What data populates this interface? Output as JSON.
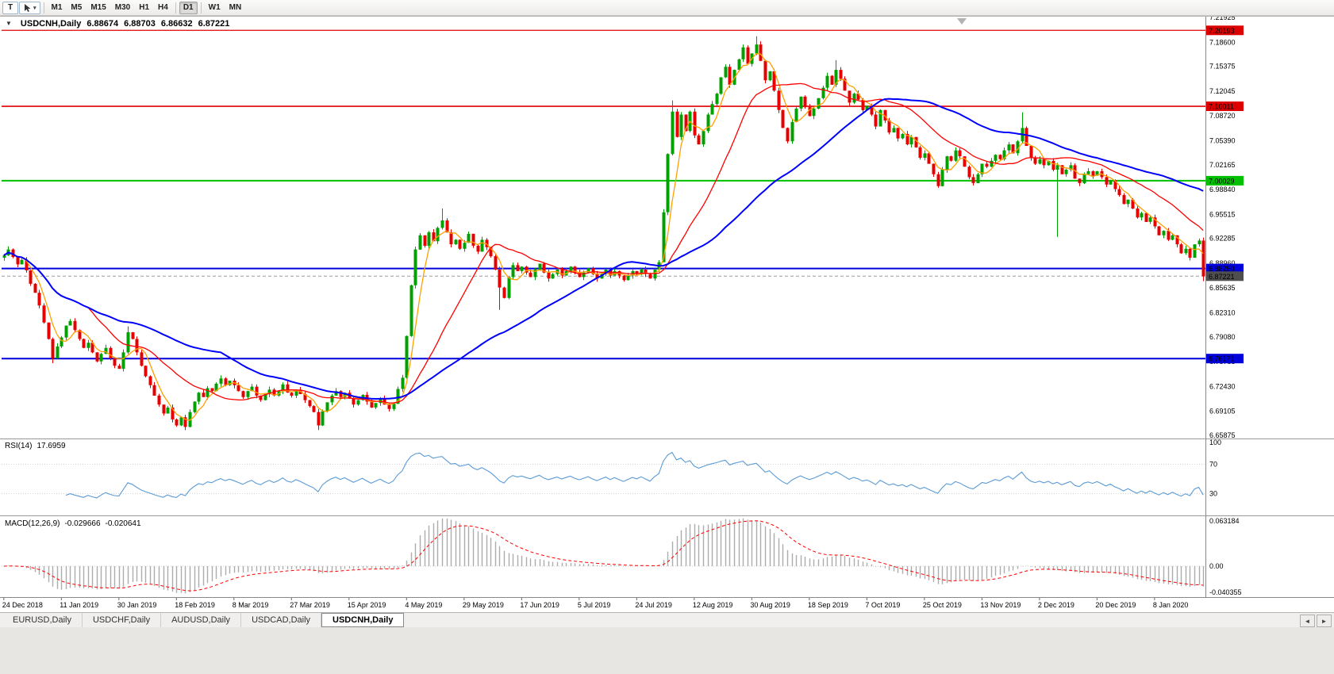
{
  "toolbar": {
    "tool_button": "T",
    "cursor_dropdown_caret": "▾",
    "timeframes": [
      "M1",
      "M5",
      "M15",
      "M30",
      "H1",
      "H4",
      "D1",
      "W1",
      "MN"
    ],
    "active_timeframe": "D1"
  },
  "chart": {
    "title_marker": "▼",
    "symbol_period": "USDCNH,Daily",
    "ohlc": {
      "open": "6.88674",
      "high": "6.88703",
      "low": "6.86632",
      "close": "6.87221"
    }
  },
  "rsi_panel": {
    "label": "RSI(14)",
    "value": "17.6959",
    "levels": [
      "100",
      "70",
      "30"
    ]
  },
  "macd_panel": {
    "label": "MACD(12,26,9)",
    "main_value": "-0.029666",
    "signal_value": "-0.020641",
    "scale": [
      "0.063184",
      "0.00",
      "-0.040355"
    ]
  },
  "price_axis": {
    "ticks": [
      "7.21925",
      "7.18600",
      "7.15375",
      "7.12045",
      "7.08720",
      "7.05390",
      "7.02165",
      "6.98840",
      "6.95515",
      "6.92285",
      "6.88960",
      "6.85635",
      "6.82310",
      "6.79080",
      "6.75755",
      "6.72430",
      "6.69105",
      "6.65875"
    ]
  },
  "hlines": [
    {
      "label": "7.20193",
      "price": 7.20193,
      "color": "#dd0000",
      "width": 1.2
    },
    {
      "label": "7.10011",
      "price": 7.10011,
      "color": "#dd0000",
      "width": 1.6
    },
    {
      "label": "7.00029",
      "price": 7.00029,
      "color": "#00c000",
      "width": 2
    },
    {
      "label": "6.88250",
      "price": 6.8825,
      "color": "#0000dd",
      "width": 2
    },
    {
      "label": "6.76171",
      "price": 6.76171,
      "color": "#0000dd",
      "width": 2
    }
  ],
  "current_price": {
    "label": "6.87221",
    "price": 6.87221,
    "box_color": "#4f4f4f"
  },
  "date_axis": {
    "label_step": 13,
    "labels": [
      "24 Dec 2018",
      "11 Jan 2019",
      "30 Jan 2019",
      "18 Feb 2019",
      "8 Mar 2019",
      "27 Mar 2019",
      "15 Apr 2019",
      "4 May 2019",
      "29 May 2019",
      "17 Jun 2019",
      "5 Jul 2019",
      "24 Jul 2019",
      "12 Aug 2019",
      "30 Aug 2019",
      "18 Sep 2019",
      "7 Oct 2019",
      "25 Oct 2019",
      "13 Nov 2019",
      "2 Dec 2019",
      "20 Dec 2019",
      "8 Jan 2020"
    ]
  },
  "tabs": {
    "items": [
      {
        "label": "EURUSD,Daily",
        "active": false
      },
      {
        "label": "USDCHF,Daily",
        "active": false
      },
      {
        "label": "AUDUSD,Daily",
        "active": false
      },
      {
        "label": "USDCAD,Daily",
        "active": false
      },
      {
        "label": "USDCNH,Daily",
        "active": true
      }
    ],
    "scroll_left": "◄",
    "scroll_right": "►"
  },
  "colors": {
    "bull": "#00A000",
    "bear": "#E80000"
  },
  "chart_data": {
    "type": "candlestick+indicators",
    "symbol": "USDCNH",
    "timeframe": "Daily",
    "price_range": {
      "top": 7.21925,
      "bottom": 6.65875
    },
    "first_open": 6.897,
    "closes": [
      6.9,
      6.908,
      6.898,
      6.888,
      6.894,
      6.88,
      6.862,
      6.85,
      6.833,
      6.81,
      6.788,
      6.762,
      6.778,
      6.79,
      6.806,
      6.812,
      6.8,
      6.788,
      6.776,
      6.783,
      6.77,
      6.758,
      6.768,
      6.776,
      6.762,
      6.752,
      6.748,
      6.77,
      6.797,
      6.788,
      6.77,
      6.752,
      6.738,
      6.726,
      6.712,
      6.7,
      6.688,
      6.696,
      6.68,
      6.672,
      6.683,
      6.67,
      6.69,
      6.704,
      6.716,
      6.71,
      6.722,
      6.718,
      6.728,
      6.735,
      6.726,
      6.732,
      6.726,
      6.718,
      6.71,
      6.718,
      6.724,
      6.712,
      6.706,
      6.714,
      6.72,
      6.712,
      6.718,
      6.727,
      6.716,
      6.712,
      6.72,
      6.714,
      6.706,
      6.698,
      6.69,
      6.672,
      6.691,
      6.703,
      6.712,
      6.718,
      6.71,
      6.716,
      6.708,
      6.7,
      6.706,
      6.713,
      6.704,
      6.696,
      6.702,
      6.708,
      6.7,
      6.694,
      6.701,
      6.721,
      6.736,
      6.792,
      6.86,
      6.908,
      6.927,
      6.913,
      6.931,
      6.919,
      6.937,
      6.947,
      6.931,
      6.915,
      6.921,
      6.909,
      6.917,
      6.929,
      6.913,
      6.905,
      6.921,
      6.911,
      6.899,
      6.881,
      6.857,
      6.843,
      6.871,
      6.887,
      6.879,
      6.885,
      6.877,
      6.871,
      6.881,
      6.889,
      6.877,
      6.869,
      6.875,
      6.881,
      6.873,
      6.879,
      6.885,
      6.877,
      6.871,
      6.877,
      6.883,
      6.875,
      6.869,
      6.875,
      6.881,
      6.873,
      6.879,
      6.873,
      6.867,
      6.873,
      6.879,
      6.875,
      6.881,
      6.875,
      6.869,
      6.881,
      6.891,
      6.958,
      7.036,
      7.093,
      7.059,
      7.089,
      7.067,
      7.093,
      7.061,
      7.049,
      7.067,
      7.089,
      7.103,
      7.117,
      7.139,
      7.153,
      7.129,
      7.149,
      7.163,
      7.179,
      7.157,
      7.171,
      7.183,
      7.161,
      7.135,
      7.147,
      7.121,
      7.095,
      7.071,
      7.053,
      7.079,
      7.097,
      7.113,
      7.099,
      7.087,
      7.097,
      7.111,
      7.125,
      7.141,
      7.129,
      7.149,
      7.137,
      7.121,
      7.105,
      7.117,
      7.109,
      7.095,
      7.101,
      7.089,
      7.073,
      7.095,
      7.081,
      7.065,
      7.071,
      7.057,
      7.063,
      7.049,
      7.059,
      7.045,
      7.031,
      7.037,
      7.023,
      7.009,
      6.993,
      7.015,
      7.033,
      7.027,
      7.041,
      7.033,
      7.019,
      7.005,
      6.997,
      7.009,
      7.023,
      7.019,
      7.027,
      7.035,
      7.029,
      7.041,
      7.049,
      7.037,
      7.053,
      7.071,
      7.047,
      7.031,
      7.023,
      7.029,
      7.021,
      7.027,
      7.015,
      7.021,
      7.009,
      7.015,
      7.021,
      7.003,
      6.997,
      7.009,
      7.013,
      7.007,
      7.013,
      7.005,
      6.995,
      7.001,
      6.989,
      6.981,
      6.969,
      6.975,
      6.963,
      6.951,
      6.957,
      6.945,
      6.951,
      6.939,
      6.927,
      6.933,
      6.921,
      6.927,
      6.915,
      6.903,
      6.909,
      6.897,
      6.915,
      6.92,
      6.872
    ],
    "wick_overrides": {
      "11": {
        "l": 6.7555
      },
      "28": {
        "h": 6.805
      },
      "71": {
        "l": 6.666
      },
      "99": {
        "h": 6.963
      },
      "112": {
        "l": 6.827
      },
      "151": {
        "h": 7.108
      },
      "170": {
        "h": 7.194
      },
      "188": {
        "h": 7.162
      },
      "230": {
        "h": 7.092
      },
      "238": {
        "l": 6.925
      },
      "271": {
        "l": 6.8655
      }
    },
    "moving_averages": [
      {
        "period": 5,
        "color": "#FF9F00",
        "width": 1.3
      },
      {
        "period": 20,
        "color": "#FF0000",
        "width": 1.3
      },
      {
        "period": 50,
        "color": "#0000FF",
        "width": 2
      }
    ],
    "rsi": {
      "period": 14,
      "color": "#5B9BD5"
    },
    "macd": {
      "fast": 12,
      "slow": 26,
      "signal": 9,
      "hist_color": "#ADADAD",
      "signal_color": "#FF0000"
    }
  }
}
